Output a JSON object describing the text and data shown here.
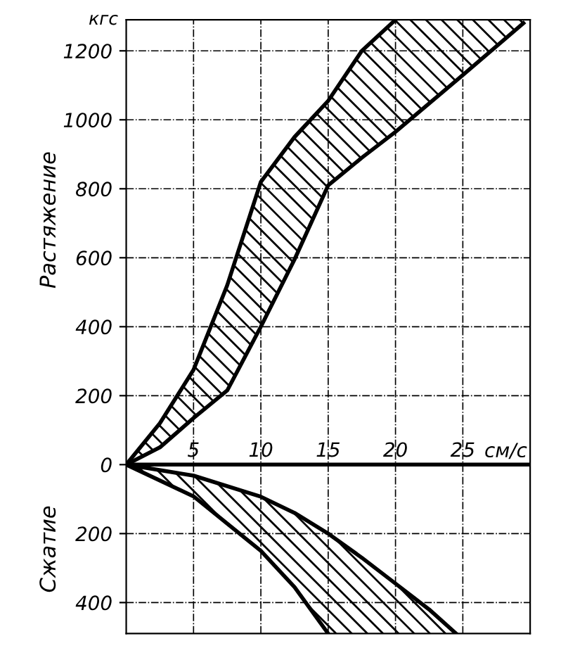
{
  "chart_data": {
    "type": "line",
    "ylabel": "кгс",
    "xlabel": "см/с",
    "annotations": [
      "Растяжение",
      "Сжатие"
    ],
    "xlim": [
      0,
      30
    ],
    "ylim": [
      -490,
      1290
    ],
    "xticks": [
      5,
      10,
      15,
      20,
      25
    ],
    "yticks": [
      {
        "value": -400,
        "label": "400"
      },
      {
        "value": -200,
        "label": "200"
      },
      0,
      200,
      400,
      600,
      800,
      1000,
      1200
    ],
    "grid": true,
    "series": [
      {
        "color": "#000000",
        "x": [
          0,
          2.5,
          5,
          7.5,
          10,
          12.5,
          15,
          17.5,
          20
        ],
        "values": [
          0,
          120,
          275,
          520,
          820,
          950,
          1055,
          1200,
          1290
        ]
      },
      {
        "color": "#000000",
        "x": [
          0,
          2.5,
          5,
          7.5,
          10,
          12.5,
          15,
          17.5,
          20,
          25,
          29.5
        ],
        "values": [
          0,
          50,
          135,
          215,
          400,
          595,
          810,
          890,
          965,
          1130,
          1280
        ],
        "lower": [
          0,
          50,
          135,
          215,
          400,
          595,
          810,
          890,
          965,
          1130,
          1280
        ],
        "upper": [
          0,
          120,
          275,
          520,
          820,
          950,
          1055,
          1200,
          1290,
          1290,
          1290
        ]
      },
      {
        "color": "#000000",
        "x": [
          0,
          5,
          10,
          12.5,
          15
        ],
        "values": [
          0,
          -92,
          -250,
          -355,
          -490
        ]
      },
      {
        "color": "#000000",
        "x": [
          0,
          5,
          10,
          12.5,
          15,
          17.5,
          20,
          22.5,
          24.5
        ],
        "values": [
          0,
          -32,
          -93,
          -140,
          -200,
          -270,
          -345,
          -420,
          -490
        ],
        "lower": [
          0,
          -92,
          -250,
          -355,
          -490,
          -490,
          -490,
          -490,
          -490
        ],
        "upper": [
          0,
          -32,
          -93,
          -140,
          -200,
          -270,
          -345,
          -420,
          -490
        ]
      }
    ]
  }
}
